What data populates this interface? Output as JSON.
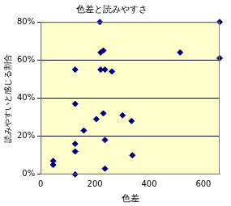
{
  "chart_data": {
    "type": "scatter",
    "title": "色差と読みやすさ",
    "x_label": "色差",
    "y_label": "読みやすいと感じる割合",
    "x": [
      46,
      46,
      127,
      127,
      127,
      127,
      127,
      159,
      205,
      218,
      221,
      231,
      221,
      237,
      231,
      237,
      237,
      263,
      302,
      335,
      338,
      514,
      660,
      660
    ],
    "values": [
      7,
      5,
      55,
      37,
      16,
      12,
      0,
      23,
      29,
      80,
      64,
      65,
      55,
      55,
      32,
      18,
      3,
      54,
      31,
      28,
      10,
      64,
      80,
      61
    ],
    "color": "#000080",
    "marker": "diamond",
    "xlim": [
      0,
      660
    ],
    "xticks": [
      0,
      200,
      400,
      600
    ],
    "ylim": [
      0,
      80
    ],
    "yticks": [
      {
        "value": 0,
        "label": "0%"
      },
      {
        "value": 20,
        "label": "20%"
      },
      {
        "value": 40,
        "label": "40%"
      },
      {
        "value": 60,
        "label": "60%"
      },
      {
        "value": 80,
        "label": "80%"
      }
    ],
    "grid": "y"
  }
}
